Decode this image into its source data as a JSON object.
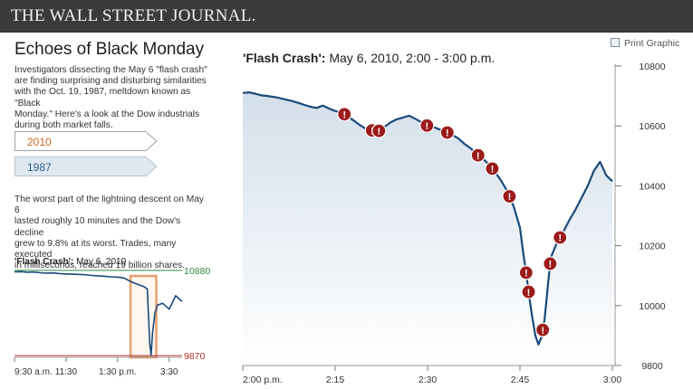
{
  "masthead": {
    "title": "THE WALL STREET JOURNAL."
  },
  "article": {
    "headline": "Echoes of Black Monday",
    "intro_lines": [
      "Investigators dissecting the May 6 \"flash crash\"",
      "are finding surprising and disturbing similarities",
      "with the Oct. 19, 1987, meltdown known as \"Black",
      "Monday.\" Here's a look at the Dow industrials",
      "during both market falls."
    ],
    "tabs": [
      {
        "label": "2010",
        "color": "#d0651e",
        "selected": true
      },
      {
        "label": "1987",
        "color": "#2f5c8e",
        "selected": false
      }
    ],
    "description_lines": [
      "The worst part of the lightning descent on May 6",
      "lasted roughly 10 minutes and the Dow's decline",
      "grew to 9.8% at its worst. Trades, many executed",
      "in milliseconds, reached 19 billion shares."
    ]
  },
  "print_label": "Print Graphic",
  "colors": {
    "line": "#1a4a7a",
    "marker": "#9b1b1b",
    "high": "#2e8b3e",
    "low": "#b03030",
    "highlight": "#e8a070"
  },
  "chart_data": [
    {
      "type": "line",
      "title_bold": "'Flash Crash':",
      "title_rest": " May 6, 2010, 2:00 - 3:00 p.m.",
      "x_ticks": [
        "2:00 p.m.",
        "2:15",
        "2:30",
        "2:45",
        "3:00"
      ],
      "x_tick_minutes": [
        0,
        15,
        30,
        45,
        60
      ],
      "xlim": [
        0,
        60
      ],
      "y_ticks": [
        10800,
        10600,
        10400,
        10200,
        10000,
        9800
      ],
      "ylim": [
        9800,
        10800
      ],
      "y_axis_position": "right",
      "series": [
        {
          "x": [
            0,
            1,
            2,
            3,
            4,
            5,
            6,
            7,
            8,
            9,
            10,
            11,
            12,
            13,
            14,
            15,
            16,
            17,
            18,
            19,
            20,
            21,
            22,
            23,
            24,
            25,
            26,
            27,
            28,
            29,
            30,
            31,
            32,
            33,
            34,
            35,
            36,
            37,
            38,
            39,
            40,
            41,
            42,
            43,
            44,
            45,
            45.5,
            46,
            46.5,
            47,
            47.5,
            48,
            48.5,
            49,
            49.5,
            50,
            51,
            52,
            53,
            54,
            55,
            56,
            57,
            58,
            59,
            60
          ],
          "y": [
            10710,
            10712,
            10708,
            10702,
            10700,
            10697,
            10693,
            10688,
            10683,
            10677,
            10670,
            10664,
            10660,
            10668,
            10658,
            10650,
            10645,
            10633,
            10618,
            10603,
            10590,
            10585,
            10582,
            10597,
            10612,
            10622,
            10628,
            10634,
            10624,
            10612,
            10600,
            10596,
            10588,
            10580,
            10570,
            10558,
            10540,
            10525,
            10505,
            10490,
            10470,
            10445,
            10415,
            10380,
            10330,
            10260,
            10180,
            10110,
            10030,
            9960,
            9900,
            9870,
            9895,
            9955,
            10060,
            10160,
            10210,
            10245,
            10285,
            10320,
            10360,
            10400,
            10450,
            10480,
            10435,
            10415
          ]
        }
      ],
      "markers_x": [
        16.5,
        21,
        22.1,
        29.9,
        33.2,
        38.2,
        40.5,
        43.3,
        46,
        46.4,
        48.7,
        49.9,
        51.5
      ]
    },
    {
      "type": "line",
      "title_bold": "'Flash Crash':",
      "title_rest": " May 6, 2010",
      "x_ticks": [
        "9:30 a.m.",
        "11:30",
        "1:30 p.m.",
        "3:30"
      ],
      "x_tick_hours": [
        0,
        2,
        4,
        6
      ],
      "xlim": [
        0,
        6.5
      ],
      "ylim": [
        9850,
        10900
      ],
      "reference_lines": [
        {
          "label": "10880",
          "value": 10880,
          "color": "#2e8b3e"
        },
        {
          "label": "9870",
          "value": 9870,
          "color": "#b03030"
        }
      ],
      "highlight_range_hours": [
        4.5,
        5.5
      ],
      "series": [
        {
          "x": [
            0,
            0.25,
            0.5,
            0.75,
            1,
            1.25,
            1.5,
            1.75,
            2,
            2.25,
            2.5,
            2.75,
            3,
            3.25,
            3.5,
            3.75,
            4,
            4.25,
            4.5,
            4.75,
            5.0,
            5.15,
            5.25,
            5.3,
            5.35,
            5.45,
            5.55,
            5.75,
            6,
            6.25,
            6.5
          ],
          "y": [
            10862,
            10865,
            10858,
            10860,
            10852,
            10848,
            10850,
            10842,
            10838,
            10835,
            10832,
            10828,
            10820,
            10815,
            10810,
            10804,
            10800,
            10790,
            10748,
            10718,
            10690,
            10660,
            10000,
            9875,
            10130,
            10380,
            10470,
            10490,
            10420,
            10580,
            10510
          ]
        }
      ]
    }
  ]
}
